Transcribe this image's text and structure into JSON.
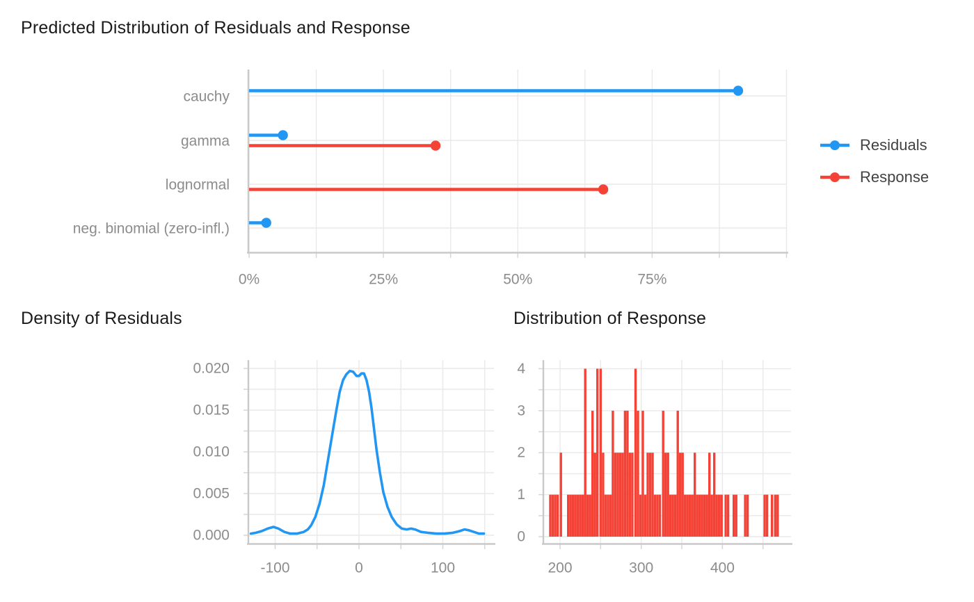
{
  "page_title": "Predicted Distribution of Residuals and Response",
  "colors": {
    "residuals_blue": "#2196F3",
    "response_red": "#F44336",
    "grid": "#E9E9E9",
    "axis_line": "#C9C9C9",
    "tick_stub": "#D6D6D6",
    "tick_label": "#8C8C8C",
    "title_text": "#1A1A1A",
    "legend_text": "#424242",
    "background": "#FFFFFF"
  },
  "legend": {
    "items": [
      {
        "label": "Residuals",
        "color_key": "residuals_blue"
      },
      {
        "label": "Response",
        "color_key": "response_red"
      }
    ]
  },
  "chart_data": [
    {
      "type": "lollipop",
      "title": "Predicted Distribution of Residuals and Response",
      "categories": [
        "cauchy",
        "gamma",
        "lognormal",
        "neg. binomial (zero-infl.)"
      ],
      "series": [
        {
          "name": "Residuals",
          "color_key": "residuals_blue",
          "values_pct": [
            91,
            6.3,
            null,
            3.2
          ]
        },
        {
          "name": "Response",
          "color_key": "response_red",
          "values_pct": [
            null,
            34.7,
            65.9,
            null
          ]
        }
      ],
      "x_ticks": [
        {
          "label": "0%",
          "value": 0
        },
        {
          "label": "25%",
          "value": 25
        },
        {
          "label": "50%",
          "value": 50
        },
        {
          "label": "75%",
          "value": 75
        }
      ],
      "xlim": [
        0,
        100
      ],
      "x_minor_step": 12.5,
      "grid": true,
      "legend_position": "right"
    },
    {
      "type": "line",
      "title": "Density of Residuals",
      "xlabel": "",
      "ylabel": "",
      "xlim": [
        -131,
        160
      ],
      "ylim": [
        0,
        0.021
      ],
      "x_ticks": [
        {
          "label": "-100",
          "value": -100
        },
        {
          "label": "0",
          "value": 0
        },
        {
          "label": "100",
          "value": 100
        }
      ],
      "x_grid_step": 50,
      "y_ticks": [
        {
          "label": "0.000",
          "value": 0.0
        },
        {
          "label": "0.005",
          "value": 0.005
        },
        {
          "label": "0.010",
          "value": 0.01
        },
        {
          "label": "0.015",
          "value": 0.015
        },
        {
          "label": "0.020",
          "value": 0.02
        }
      ],
      "y_minor_step": 0.0025,
      "grid": true,
      "points": [
        [
          -129,
          0.0002
        ],
        [
          -123,
          0.0003
        ],
        [
          -116,
          0.0005
        ],
        [
          -109,
          0.0008
        ],
        [
          -102,
          0.001
        ],
        [
          -96,
          0.0008
        ],
        [
          -89,
          0.0004
        ],
        [
          -82,
          0.0002
        ],
        [
          -74,
          0.0002
        ],
        [
          -66,
          0.0004
        ],
        [
          -61,
          0.0007
        ],
        [
          -57,
          0.0012
        ],
        [
          -52,
          0.0022
        ],
        [
          -47,
          0.0038
        ],
        [
          -42,
          0.006
        ],
        [
          -37,
          0.009
        ],
        [
          -32,
          0.012
        ],
        [
          -27,
          0.015
        ],
        [
          -23,
          0.0172
        ],
        [
          -19,
          0.0186
        ],
        [
          -15,
          0.0193
        ],
        [
          -11,
          0.0197
        ],
        [
          -7,
          0.0196
        ],
        [
          -3,
          0.0191
        ],
        [
          0,
          0.0191
        ],
        [
          3,
          0.0194
        ],
        [
          6,
          0.0194
        ],
        [
          9,
          0.0186
        ],
        [
          12,
          0.0172
        ],
        [
          15,
          0.0152
        ],
        [
          18,
          0.0127
        ],
        [
          21,
          0.0102
        ],
        [
          25,
          0.0075
        ],
        [
          29,
          0.0052
        ],
        [
          34,
          0.0034
        ],
        [
          39,
          0.0022
        ],
        [
          45,
          0.0013
        ],
        [
          51,
          0.0008
        ],
        [
          57,
          0.0007
        ],
        [
          62,
          0.0008
        ],
        [
          67,
          0.0007
        ],
        [
          74,
          0.0004
        ],
        [
          82,
          0.0003
        ],
        [
          92,
          0.0002
        ],
        [
          102,
          0.0002
        ],
        [
          112,
          0.0003
        ],
        [
          120,
          0.0005
        ],
        [
          126,
          0.0007
        ],
        [
          131,
          0.0006
        ],
        [
          137,
          0.0004
        ],
        [
          143,
          0.0002
        ],
        [
          149,
          0.0002
        ]
      ]
    },
    {
      "type": "bar",
      "title": "Distribution of Response",
      "xlabel": "",
      "ylabel": "",
      "xlim": [
        180,
        485
      ],
      "ylim": [
        0,
        4.2
      ],
      "x_ticks": [
        {
          "label": "200",
          "value": 200
        },
        {
          "label": "300",
          "value": 300
        },
        {
          "label": "400",
          "value": 400
        }
      ],
      "x_grid_step": 50,
      "y_ticks": [
        {
          "label": "0",
          "value": 0
        },
        {
          "label": "1",
          "value": 1
        },
        {
          "label": "2",
          "value": 2
        },
        {
          "label": "3",
          "value": 3
        },
        {
          "label": "4",
          "value": 4
        }
      ],
      "y_minor_step": 0.5,
      "grid": true,
      "bars": [
        [
          188,
          1
        ],
        [
          191,
          1
        ],
        [
          194,
          1
        ],
        [
          197,
          1
        ],
        [
          201,
          2
        ],
        [
          210,
          1
        ],
        [
          213,
          1
        ],
        [
          216,
          1
        ],
        [
          219,
          1
        ],
        [
          222,
          1
        ],
        [
          225,
          1
        ],
        [
          228,
          1
        ],
        [
          231,
          4
        ],
        [
          234,
          1
        ],
        [
          237,
          1
        ],
        [
          240,
          3
        ],
        [
          243,
          2
        ],
        [
          246,
          4
        ],
        [
          250,
          4
        ],
        [
          253,
          2
        ],
        [
          256,
          1
        ],
        [
          259,
          1
        ],
        [
          262,
          1
        ],
        [
          265,
          3
        ],
        [
          268,
          2
        ],
        [
          271,
          2
        ],
        [
          274,
          2
        ],
        [
          277,
          2
        ],
        [
          280,
          3
        ],
        [
          283,
          3
        ],
        [
          286,
          2
        ],
        [
          289,
          2
        ],
        [
          293,
          4
        ],
        [
          296,
          3
        ],
        [
          299,
          1
        ],
        [
          302,
          3
        ],
        [
          305,
          1
        ],
        [
          308,
          2
        ],
        [
          311,
          2
        ],
        [
          314,
          2
        ],
        [
          317,
          1
        ],
        [
          320,
          1
        ],
        [
          323,
          1
        ],
        [
          327,
          3
        ],
        [
          330,
          2
        ],
        [
          333,
          2
        ],
        [
          336,
          1
        ],
        [
          339,
          1
        ],
        [
          342,
          1
        ],
        [
          345,
          3
        ],
        [
          348,
          2
        ],
        [
          351,
          2
        ],
        [
          354,
          1
        ],
        [
          357,
          1
        ],
        [
          360,
          1
        ],
        [
          363,
          1
        ],
        [
          366,
          2
        ],
        [
          369,
          1
        ],
        [
          372,
          1
        ],
        [
          375,
          1
        ],
        [
          378,
          1
        ],
        [
          381,
          1
        ],
        [
          384,
          2
        ],
        [
          387,
          1
        ],
        [
          390,
          2
        ],
        [
          393,
          1
        ],
        [
          396,
          1
        ],
        [
          399,
          1
        ],
        [
          404,
          1
        ],
        [
          407,
          1
        ],
        [
          414,
          1
        ],
        [
          417,
          1
        ],
        [
          428,
          1
        ],
        [
          431,
          1
        ],
        [
          452,
          1
        ],
        [
          455,
          1
        ],
        [
          461,
          1
        ],
        [
          465,
          1
        ],
        [
          468,
          1
        ]
      ]
    }
  ]
}
